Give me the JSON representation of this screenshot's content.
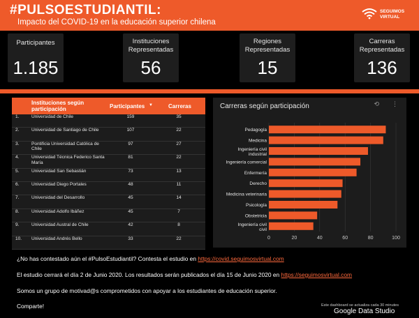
{
  "header": {
    "title": "#PULSOESTUDIANTIL:",
    "subtitle": "Impacto del COVID-19 en la educación superior chilena",
    "brand_line1": "SEGUIMOS",
    "brand_line2": "VIRTUAL"
  },
  "kpis": [
    {
      "label": "Participantes",
      "value": "1.185"
    },
    {
      "label": "Instituciones Representadas",
      "value": "56"
    },
    {
      "label": "Regiones Representadas",
      "value": "15"
    },
    {
      "label": "Carreras Representadas",
      "value": "136"
    }
  ],
  "table": {
    "headers": {
      "institution": "Instituciones según participación",
      "participants": "Participantes",
      "careers": "Carreras"
    },
    "rows": [
      {
        "n": "1.",
        "name": "Universidad de Chile",
        "participants": "159",
        "careers": "35"
      },
      {
        "n": "2.",
        "name": "Universidad de Santiago de Chile",
        "participants": "107",
        "careers": "22"
      },
      {
        "n": "3.",
        "name": "Pontificia Universidad Católica de Chile",
        "participants": "97",
        "careers": "27"
      },
      {
        "n": "4.",
        "name": "Universidad Técnica Federico Santa María",
        "participants": "81",
        "careers": "22"
      },
      {
        "n": "5.",
        "name": "Universidad San Sebastián",
        "participants": "73",
        "careers": "13"
      },
      {
        "n": "6.",
        "name": "Universidad Diego Portales",
        "participants": "48",
        "careers": "11"
      },
      {
        "n": "7.",
        "name": "Universidad del Desarrollo",
        "participants": "45",
        "careers": "14"
      },
      {
        "n": "8.",
        "name": "Universidad Adolfo Ibáñez",
        "participants": "45",
        "careers": "7"
      },
      {
        "n": "9.",
        "name": "Universidad Austral de Chile",
        "participants": "42",
        "careers": "8"
      },
      {
        "n": "10.",
        "name": "Universidad Andrés Bello",
        "participants": "33",
        "careers": "22"
      }
    ]
  },
  "chart_data": {
    "type": "bar",
    "orientation": "horizontal",
    "title": "Carreras según participación",
    "categories": [
      "Pedagogía",
      "Medicina",
      "Ingeniería civil industrial",
      "Ingeniería comercial",
      "Enfermería",
      "Derecho",
      "Medicina veterinaria",
      "Psicología",
      "Obstetricia",
      "Ingeniería civil civil"
    ],
    "values": [
      92,
      90,
      78,
      72,
      69,
      58,
      57,
      54,
      38,
      35
    ],
    "xlim": [
      0,
      100
    ],
    "xticks": [
      0,
      20,
      40,
      60,
      80,
      100
    ],
    "bar_color": "#ee5a2a"
  },
  "footer": {
    "line1_text": "¿No has contestado aún el #PulsoEstudiantil? Contesta el estudio en ",
    "line1_link": "https://covid.seguimosvirtual.com",
    "line2_text": "El estudio cerrará el día 2 de Junio 2020. Los resultados serán publicados el día 15 de Junio 2020 en ",
    "line2_link": "https://seguimosvirtual.com",
    "line3_text": "Somos un grupo de motivad@s comprometidos con apoyar a los estudiantes de educación superior.",
    "line4_text": "Comparte!",
    "update_note": "Este dashboard se actualiza cada 30 minutes",
    "gds_label": "Google Data Studio"
  }
}
